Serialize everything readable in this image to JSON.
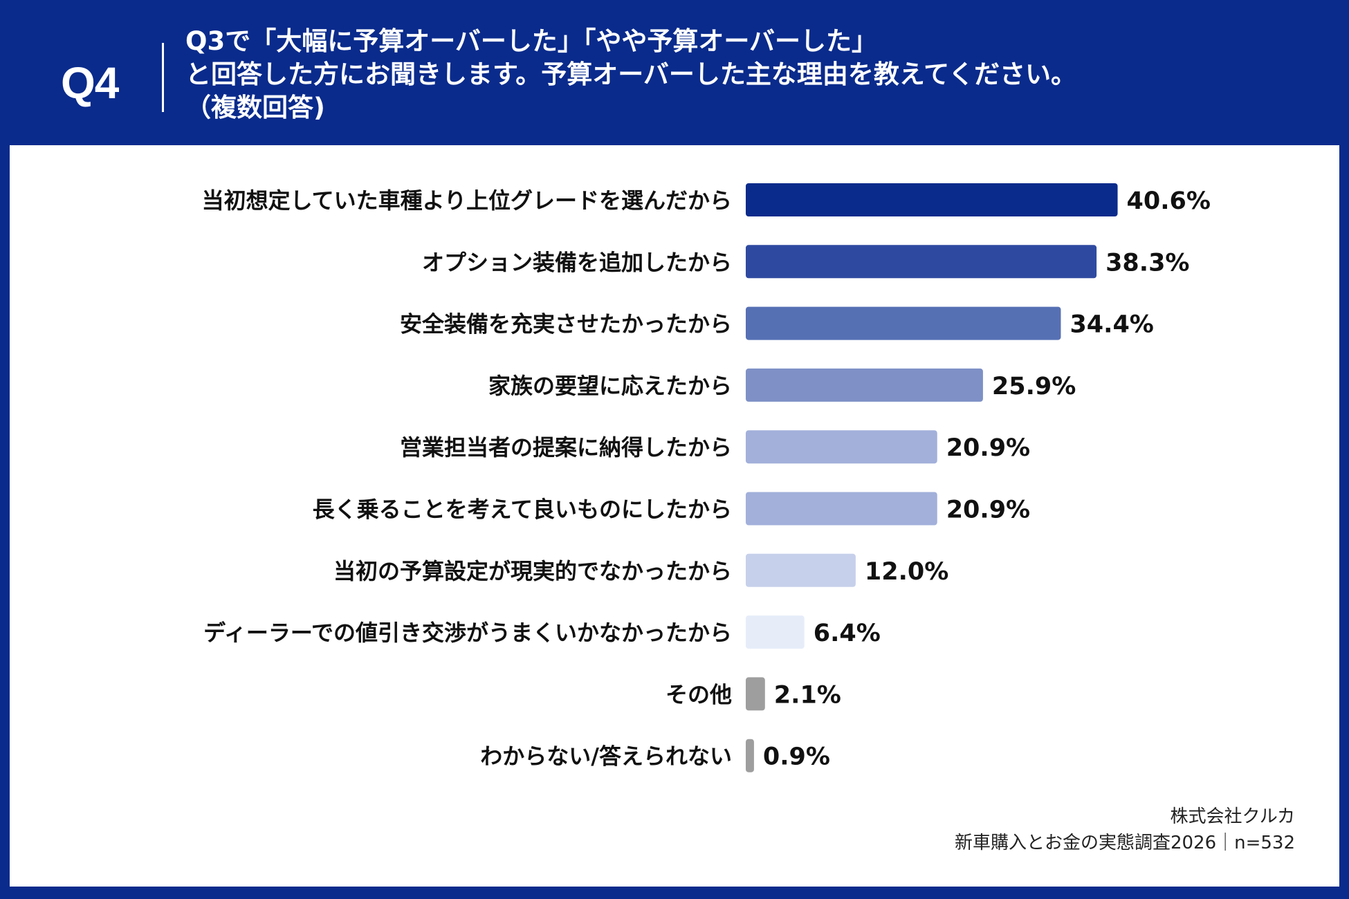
{
  "question": {
    "number": "Q4",
    "line1": "Q3で「大幅に予算オーバーした」「やや予算オーバーした」",
    "line2": "と回答した方にお聞きします。予算オーバーした主な理由を教えてください。",
    "line3": "（複数回答)"
  },
  "chart_data": {
    "type": "bar",
    "orientation": "horizontal",
    "title": "予算オーバーした主な理由（複数回答）",
    "categories": [
      "当初想定していた車種より上位グレードを選んだから",
      "オプション装備を追加したから",
      "安全装備を充実させたかったから",
      "家族の要望に応えたから",
      "営業担当者の提案に納得したから",
      "長く乗ることを考えて良いものにしたから",
      "当初の予算設定が現実的でなかったから",
      "ディーラーでの値引き交渉がうまくいかなかったから",
      "その他",
      "わからない/答えられない"
    ],
    "values": [
      40.6,
      38.3,
      34.4,
      25.9,
      20.9,
      20.9,
      12.0,
      6.4,
      2.1,
      0.9
    ],
    "value_labels": [
      "40.6%",
      "38.3%",
      "34.4%",
      "25.9%",
      "20.9%",
      "20.9%",
      "12.0%",
      "6.4%",
      "2.1%",
      "0.9%"
    ],
    "colors": [
      "#0a2b8c",
      "#2e4aa0",
      "#5670b4",
      "#7e90c6",
      "#a2b0da",
      "#a2b0da",
      "#c6d0ea",
      "#e6edf9",
      "#9e9e9e",
      "#9e9e9e"
    ],
    "unit": "%",
    "xlim": [
      0,
      100
    ],
    "xlabel": "",
    "ylabel": "",
    "grid": false
  },
  "footer": {
    "company": "株式会社クルカ",
    "survey": "新車購入とお金の実態調査2026｜n=532"
  }
}
